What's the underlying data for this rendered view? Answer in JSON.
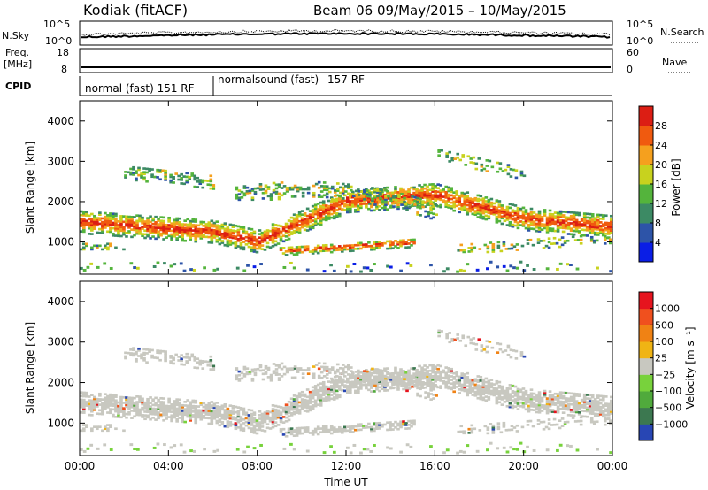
{
  "header": {
    "station": "Kodiak (fitACF)",
    "beam_info": "Beam 06  09/May/2015 – 10/May/2015"
  },
  "nsky_panel": {
    "left_label": "N.Sky",
    "left_ticks": [
      "10^5",
      "10^0"
    ],
    "right_label": "N.Search",
    "right_ticks": [
      "10^5",
      "10^0"
    ]
  },
  "freq_panel": {
    "left_label_1": "Freq.",
    "left_label_2": "[MHz]",
    "left_ticks": [
      "18",
      "8"
    ],
    "right_label": "Nave",
    "right_ticks": [
      "60",
      "0"
    ]
  },
  "cpid_panel": {
    "label": "CPID",
    "programs": [
      "normal (fast) 151 RF",
      "normalsound (fast) –157 RF"
    ]
  },
  "chart_data": [
    {
      "type": "heatmap",
      "parameter": "power",
      "ylabel": "Slant Range [km]",
      "xlabel": "",
      "ylim": [
        200,
        4500
      ],
      "yticks": [
        "4000",
        "3000",
        "2000",
        "1000"
      ],
      "colorbar": {
        "label": "Power [dB]",
        "ticks": [
          "28",
          "24",
          "20",
          "16",
          "12",
          "8",
          "4"
        ],
        "colors": [
          "#0a1ee6",
          "#2d54a8",
          "#3c8a64",
          "#54b43c",
          "#c8d21e",
          "#f5a01e",
          "#f05a0f",
          "#dc1e14"
        ]
      }
    },
    {
      "type": "heatmap",
      "parameter": "velocity",
      "ylabel": "Slant Range [km]",
      "xlabel": "Time UT",
      "ylim": [
        200,
        4500
      ],
      "yticks": [
        "4000",
        "3000",
        "2000",
        "1000"
      ],
      "xticks": [
        "00:00",
        "04:00",
        "08:00",
        "12:00",
        "16:00",
        "20:00",
        "00:00"
      ],
      "colorbar": {
        "label": "Velocity [m s⁻¹]",
        "ticks": [
          "1000",
          "500",
          "100",
          "25",
          "−25",
          "−100",
          "−500",
          "−1000"
        ],
        "colors": [
          "#2846b4",
          "#3c7850",
          "#50aa3c",
          "#78d23c",
          "#c8c8c0",
          "#f0b414",
          "#f08214",
          "#f0501e",
          "#e6141e"
        ]
      }
    }
  ]
}
